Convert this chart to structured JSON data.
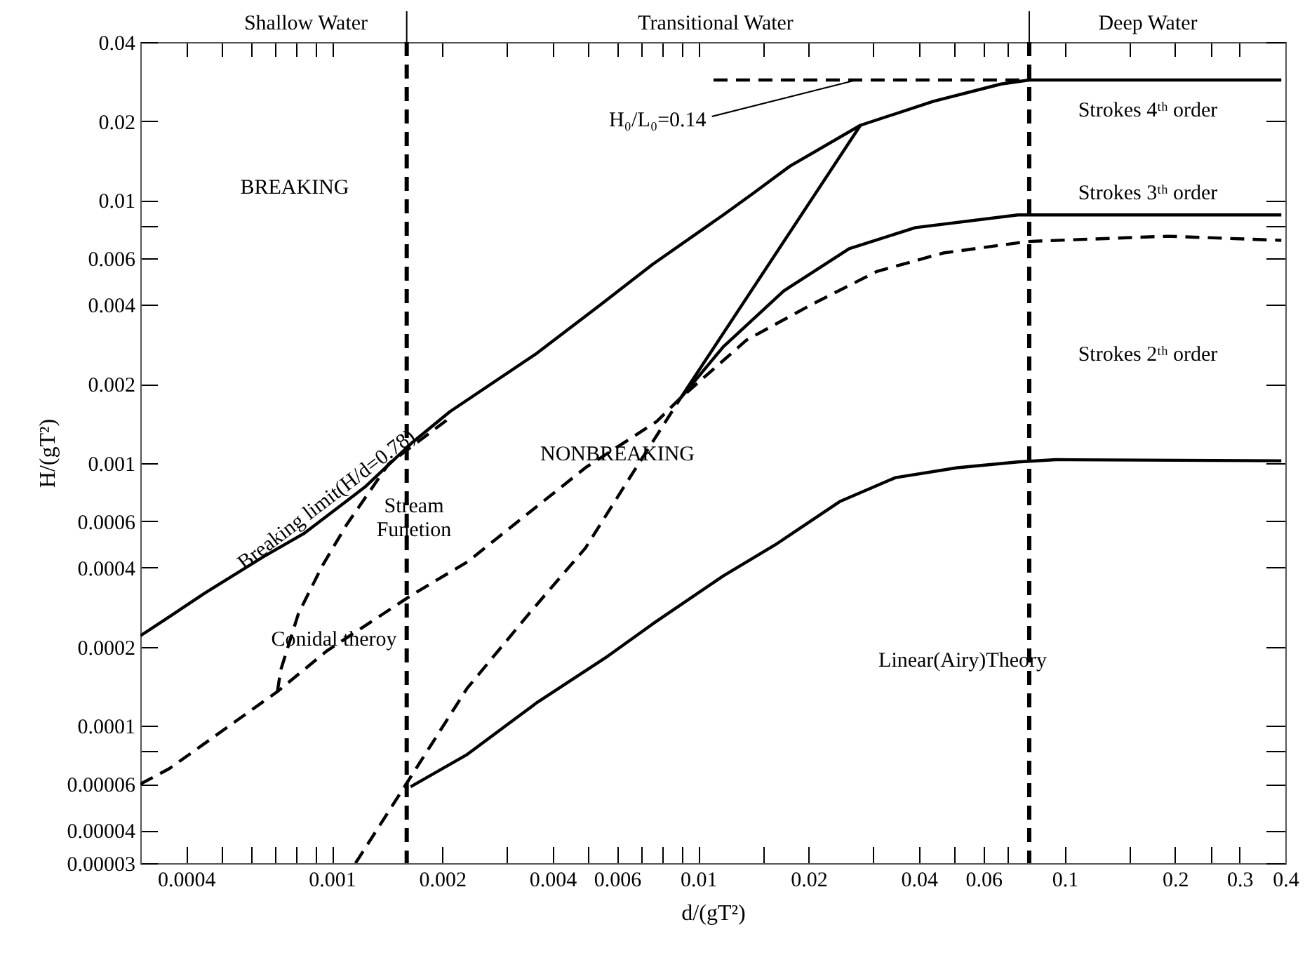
{
  "chart_data": {
    "type": "line",
    "xlabel": "d/(gT²)",
    "ylabel": "H/(gT²)",
    "log": "xy",
    "xlim": [
      0.0003,
      0.4
    ],
    "ylim": [
      3e-05,
      0.04
    ],
    "xticks": [
      0.0004,
      {
        "value": 0.0005,
        "label": null
      },
      {
        "value": 0.0006,
        "label": null
      },
      {
        "value": 0.0007,
        "label": null
      },
      {
        "value": 0.0008,
        "label": null
      },
      {
        "value": 0.0009,
        "label": null
      },
      0.001,
      0.002,
      {
        "value": 0.003,
        "label": null
      },
      0.004,
      {
        "value": 0.005,
        "label": null
      },
      0.006,
      {
        "value": 0.007,
        "label": null
      },
      {
        "value": 0.008,
        "label": null
      },
      {
        "value": 0.009,
        "label": null
      },
      0.01,
      {
        "value": 0.015,
        "label": null
      },
      0.02,
      {
        "value": 0.03,
        "label": null
      },
      0.04,
      {
        "value": 0.05,
        "label": null
      },
      0.06,
      {
        "value": 0.07,
        "label": null
      },
      0.1,
      {
        "value": 0.15,
        "label": null
      },
      0.2,
      {
        "value": 0.25,
        "label": null
      },
      0.3,
      0.4
    ],
    "yticks": [
      {
        "value": 3e-05,
        "label": "0.00003"
      },
      {
        "value": 4e-05,
        "label": "0.00004"
      },
      {
        "value": 6e-05,
        "label": "0.00006"
      },
      {
        "value": 8e-05,
        "label": null
      },
      0.0001,
      0.0002,
      0.0004,
      0.0006,
      0.001,
      0.002,
      0.004,
      0.006,
      {
        "value": 0.008,
        "label": null
      },
      0.01,
      0.02,
      0.04
    ],
    "series": [
      {
        "name": "Breaking limit(H/d=0.78)",
        "color": "#000000",
        "line_style": "solid",
        "x": [
          0.0003,
          0.00036,
          0.00045,
          0.00065,
          0.00084,
          0.00123,
          0.00166,
          0.0021,
          0.0036,
          0.0054,
          0.0075,
          0.0117,
          0.0142,
          0.0178,
          0.0277,
          0.0438,
          0.067,
          0.08,
          0.39
        ],
        "values": [
          0.00022,
          0.00026,
          0.00032,
          0.00044,
          0.00054,
          0.00081,
          0.0012,
          0.00157,
          0.0026,
          0.004,
          0.0057,
          0.0088,
          0.0107,
          0.0135,
          0.0193,
          0.0238,
          0.0277,
          0.0287,
          0.0287
        ]
      },
      {
        "color": "#000000",
        "line_style": "dashed",
        "x": [
          0.011,
          0.027,
          0.08
        ],
        "values": [
          0.0287,
          0.0287,
          0.0287
        ]
      },
      {
        "color": "#000000",
        "line_style": "solid",
        "x": [
          0.00895,
          0.0277
        ],
        "values": [
          0.00177,
          0.0193
        ]
      },
      {
        "color": "#000000",
        "line_style": "solid",
        "x": [
          0.00895,
          0.0117,
          0.0171,
          0.0258,
          0.0391,
          0.0745,
          0.39
        ],
        "values": [
          0.00177,
          0.00277,
          0.00452,
          0.00654,
          0.00787,
          0.0088,
          0.0088
        ]
      },
      {
        "color": "#000000",
        "line_style": "dashed",
        "x": [
          0.0003,
          0.00036,
          0.00071,
          0.00097,
          0.00166,
          0.00234,
          0.00492,
          0.0077,
          0.00895,
          0.01355,
          0.0203,
          0.0308,
          0.0466,
          0.0792,
          0.191,
          0.39
        ],
        "values": [
          6e-05,
          6.87e-05,
          0.000135,
          0.000193,
          0.000316,
          0.00042,
          0.00096,
          0.00144,
          0.00177,
          0.00294,
          0.004,
          0.00537,
          0.0063,
          0.00697,
          0.0073,
          0.00704
        ]
      },
      {
        "color": "#000000",
        "line_style": "dashed",
        "x": [
          0.00071,
          0.000725,
          0.00081,
          0.00094,
          0.0011,
          0.00143,
          0.00209
        ],
        "values": [
          0.000135,
          0.000163,
          0.000267,
          0.000405,
          0.000586,
          0.000995,
          0.00148
        ]
      },
      {
        "color": "#000000",
        "line_style": "dashed",
        "x": [
          0.00116,
          0.00164,
          0.00234,
          0.00345,
          0.00492,
          0.0064,
          0.00895
        ],
        "values": [
          3e-05,
          6.38e-05,
          0.000139,
          0.000267,
          0.000475,
          0.00085,
          0.00177
        ]
      },
      {
        "color": "#000000",
        "line_style": "solid",
        "x": [
          0.00164,
          0.00234,
          0.00364,
          0.00566,
          0.0075,
          0.0117,
          0.0162,
          0.0243,
          0.0345,
          0.0509,
          0.0745,
          0.0945,
          0.39
        ],
        "values": [
          5.86e-05,
          7.78e-05,
          0.000123,
          0.000184,
          0.000244,
          0.000372,
          0.000488,
          0.000713,
          0.00088,
          0.00096,
          0.00101,
          0.00103,
          0.00102
        ]
      }
    ],
    "ref_lines": [
      {
        "axis": "x",
        "value": 0.0016,
        "line_style": "dashed"
      },
      {
        "axis": "x",
        "value": 0.08,
        "line_style": "dashed"
      }
    ],
    "annotations": [
      {
        "text": "H₀/L₀=0.14",
        "x": 0.027,
        "y": 0.0287
      },
      "Shallow Water",
      "Transitional Water",
      "Deep Water",
      "BREAKING",
      "NONBREAKING",
      "Stream\nFunetion",
      "Conidal theroy",
      "Strokes 4ᵗʰ order",
      "Strokes 3ᵗʰ order",
      "Strokes 2ᵗʰ order",
      "Linear(Airy)Theory"
    ]
  }
}
